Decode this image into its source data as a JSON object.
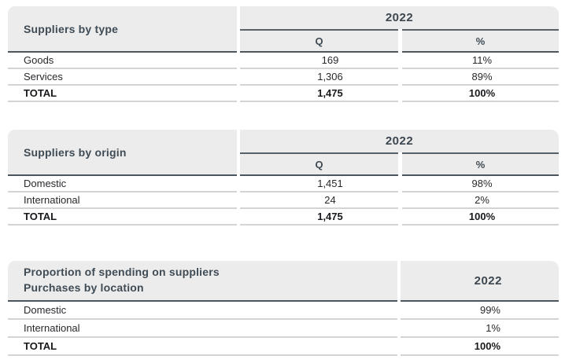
{
  "colors": {
    "header_background": "#ececec",
    "dark_rule": "#4c565e",
    "light_rule": "#d2d4d5",
    "header_text": "#3f4b55",
    "body_text": "#27292c"
  },
  "tables": [
    {
      "title": "Suppliers by type",
      "year": "2022",
      "col_q": "Q",
      "col_pct": "%",
      "rows": [
        {
          "label": "Goods",
          "q": "169",
          "pct": "11%"
        },
        {
          "label": "Services",
          "q": "1,306",
          "pct": "89%"
        },
        {
          "label": "TOTAL",
          "q": "1,475",
          "pct": "100%"
        }
      ]
    },
    {
      "title": "Suppliers by origin",
      "year": "2022",
      "col_q": "Q",
      "col_pct": "%",
      "rows": [
        {
          "label": "Domestic",
          "q": "1,451",
          "pct": "98%"
        },
        {
          "label": "International",
          "q": "24",
          "pct": "2%"
        },
        {
          "label": "TOTAL",
          "q": "1,475",
          "pct": "100%"
        }
      ]
    },
    {
      "title_line1": "Proportion of spending on suppliers",
      "title_line2": "Purchases by location",
      "year": "2022",
      "rows": [
        {
          "label": "Domestic",
          "value": "99%"
        },
        {
          "label": "International",
          "value": "1%"
        },
        {
          "label": "TOTAL",
          "value": "100%"
        }
      ]
    }
  ]
}
